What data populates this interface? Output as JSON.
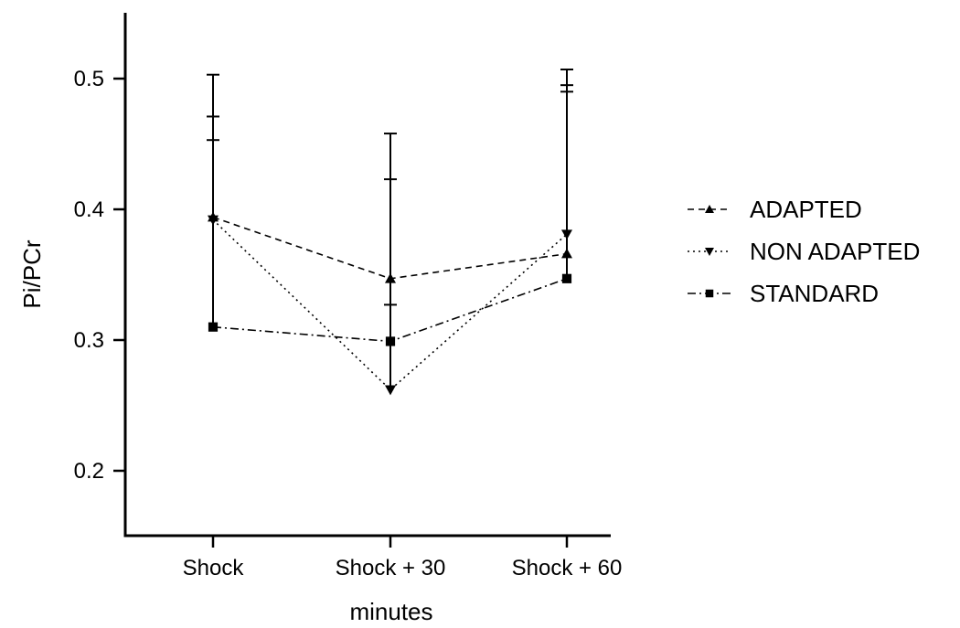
{
  "chart_data": {
    "type": "line",
    "title": "",
    "xlabel": "minutes",
    "ylabel": "Pi/PCr",
    "categories": [
      "Shock",
      "Shock + 30",
      "Shock + 60"
    ],
    "ylim": [
      0.15,
      0.55
    ],
    "yticks": [
      0.2,
      0.3,
      0.4,
      0.5
    ],
    "ytick_labels": [
      "0.2",
      "0.3",
      "0.4",
      "0.5"
    ],
    "grid": false,
    "legend_position": "right",
    "error_bars": "upper",
    "series": [
      {
        "name": "ADAPTED",
        "marker": "triangle-up",
        "line_style": "dashed",
        "color": "#000000",
        "values": [
          0.394,
          0.347,
          0.366
        ],
        "upper": [
          0.471,
          0.423,
          0.495
        ]
      },
      {
        "name": "NON ADAPTED",
        "marker": "triangle-down",
        "line_style": "dotted",
        "color": "#000000",
        "values": [
          0.392,
          0.262,
          0.381
        ],
        "upper": [
          0.453,
          0.327,
          0.507
        ]
      },
      {
        "name": "STANDARD",
        "marker": "square",
        "line_style": "dash-dot",
        "color": "#000000",
        "values": [
          0.31,
          0.299,
          0.347
        ],
        "upper": [
          0.503,
          0.458,
          0.49
        ]
      }
    ]
  }
}
